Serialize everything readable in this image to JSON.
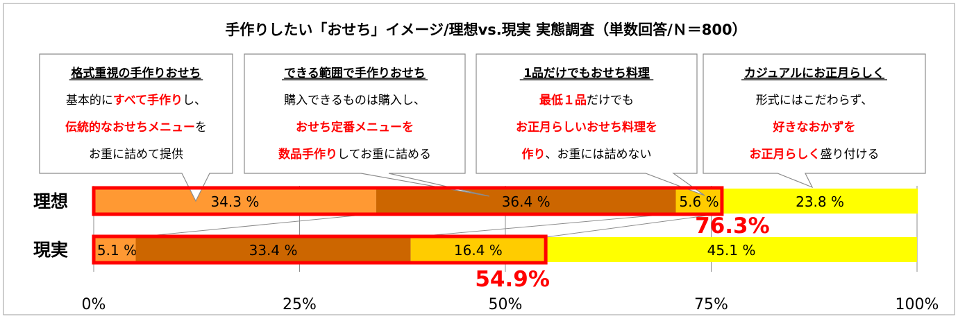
{
  "chart_data": {
    "type": "bar",
    "stacked": true,
    "orientation": "horizontal",
    "title": "手作りしたい「おせち」イメージ/理想vs.現実 実態調査（単数回答/Ｎ＝800）",
    "categories": [
      "理想",
      "現実"
    ],
    "series": [
      {
        "name": "格式重視の手作りおせち",
        "values": [
          34.3,
          5.1
        ],
        "labels": [
          "34.3 %",
          "5.1 %"
        ],
        "color": "#FF9933"
      },
      {
        "name": "できる範囲で手作りおせち",
        "values": [
          36.4,
          33.4
        ],
        "labels": [
          "36.4 %",
          "33.4 %"
        ],
        "color": "#CC6600"
      },
      {
        "name": "1品だけでもおせち料理",
        "values": [
          5.6,
          16.4
        ],
        "labels": [
          "5.6 %",
          "16.4 %"
        ],
        "color": "#FFCC00"
      },
      {
        "name": "カジュアルにお正月らしく",
        "values": [
          23.8,
          45.1
        ],
        "labels": [
          "23.8 %",
          "45.1 %"
        ],
        "color": "#FFFF00"
      }
    ],
    "xlim": [
      0,
      100
    ],
    "xticks": [
      "0%",
      "25%",
      "50%",
      "75%",
      "100%"
    ],
    "grid": true,
    "highlight_color": "#FF0000",
    "highlight_totals": [
      "76.3%",
      "54.9%"
    ],
    "callouts": [
      {
        "title": "格式重視の手作りおせち",
        "lines": [
          [
            {
              "t": "基本的に",
              "r": false
            },
            {
              "t": "すべて手作り",
              "r": true
            },
            {
              "t": "し、",
              "r": false
            }
          ],
          [
            {
              "t": "伝統的なおせちメニュー",
              "r": true
            },
            {
              "t": "を",
              "r": false
            }
          ],
          [
            {
              "t": "お重に詰めて提供",
              "r": false
            }
          ]
        ]
      },
      {
        "title": "できる範囲で手作りおせち",
        "lines": [
          [
            {
              "t": "購入できるものは購入し、",
              "r": false
            }
          ],
          [
            {
              "t": "おせち定番メニューを",
              "r": true
            }
          ],
          [
            {
              "t": "数品手作り",
              "r": true
            },
            {
              "t": "してお重に詰める",
              "r": false
            }
          ]
        ]
      },
      {
        "title": "1品だけでもおせち料理",
        "lines": [
          [
            {
              "t": "最低１品",
              "r": true
            },
            {
              "t": "だけでも",
              "r": false
            }
          ],
          [
            {
              "t": "お正月らしいおせち料理を",
              "r": true
            }
          ],
          [
            {
              "t": "作り",
              "r": true
            },
            {
              "t": "、お重には詰めない",
              "r": false
            }
          ]
        ]
      },
      {
        "title": "カジュアルにお正月らしく",
        "lines": [
          [
            {
              "t": "形式にはこだわらず、",
              "r": false
            }
          ],
          [
            {
              "t": "好きなおかずを",
              "r": true
            }
          ],
          [
            {
              "t": "お正月らしく",
              "r": true
            },
            {
              "t": "盛り付ける",
              "r": false
            }
          ]
        ]
      }
    ]
  }
}
